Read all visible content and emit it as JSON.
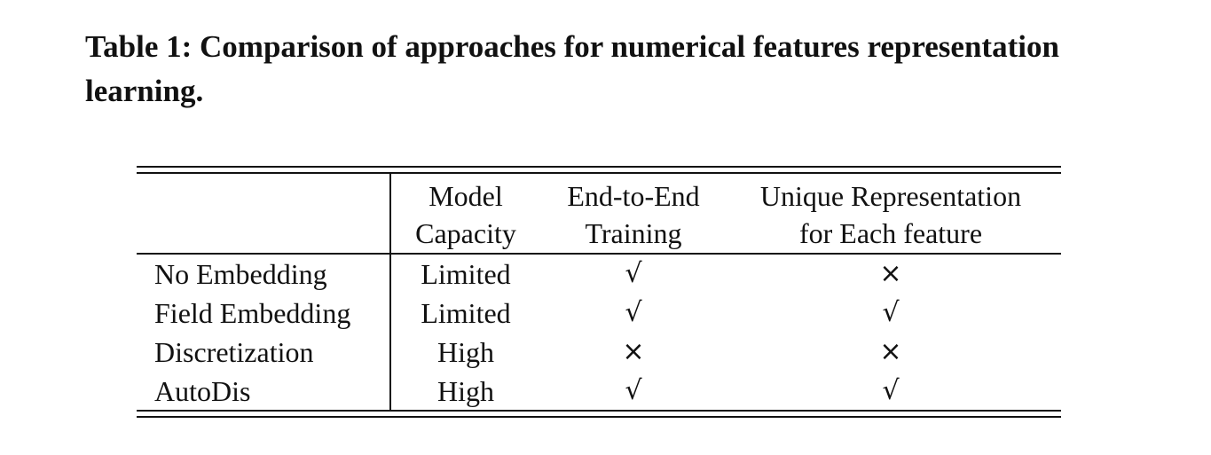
{
  "caption": {
    "label": "Table 1:",
    "text": "Comparison of approaches for numerical features representation learning."
  },
  "table": {
    "headers": [
      {
        "line1": "",
        "line2": ""
      },
      {
        "line1": "Model",
        "line2": "Capacity"
      },
      {
        "line1": "End-to-End",
        "line2": "Training"
      },
      {
        "line1": "Unique Representation",
        "line2": "for Each feature"
      }
    ],
    "rows": [
      {
        "method": "No Embedding",
        "capacity": "Limited",
        "end_to_end": "√",
        "unique": "×"
      },
      {
        "method": "Field Embedding",
        "capacity": "Limited",
        "end_to_end": "√",
        "unique": "√"
      },
      {
        "method": "Discretization",
        "capacity": "High",
        "end_to_end": "×",
        "unique": "×"
      },
      {
        "method": "AutoDis",
        "capacity": "High",
        "end_to_end": "√",
        "unique": "√"
      }
    ]
  }
}
